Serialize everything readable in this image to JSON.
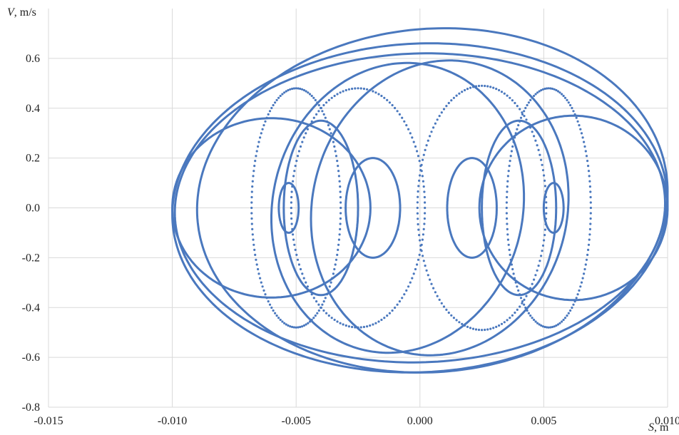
{
  "chart_data": {
    "type": "scatter",
    "title": "",
    "xlabel": {
      "var": "S",
      "unit": ", m"
    },
    "ylabel": {
      "var": "V",
      "unit": ", m/s"
    },
    "xlim": [
      -0.015,
      0.01
    ],
    "ylim": [
      -0.8,
      0.8
    ],
    "xticks": [
      "-0.015",
      "-0.010",
      "-0.005",
      "0.000",
      "0.005",
      "0.010"
    ],
    "yticks": [
      "-0.8",
      "-0.6",
      "-0.4",
      "-0.2",
      "0.0",
      "0.2",
      "0.4",
      "0.6"
    ],
    "grid": true,
    "legend": "none",
    "series": [
      {
        "color": "#4a78be",
        "style": "dense-dots",
        "loops": [
          {
            "cx": 0.0,
            "cy": 0.0,
            "rx": 0.0099,
            "ry": 0.62,
            "tilt": 0.1
          },
          {
            "cx": 0.0,
            "cy": 0.0,
            "rx": 0.01,
            "ry": 0.66,
            "tilt": 0.14
          },
          {
            "cx": 0.0005,
            "cy": 0.03,
            "rx": 0.0095,
            "ry": 0.69,
            "tilt": 0.18
          },
          {
            "cx": -0.006,
            "cy": 0.0,
            "rx": 0.004,
            "ry": 0.36,
            "tilt": 0.0
          },
          {
            "cx": 0.0062,
            "cy": 0.0,
            "rx": 0.0038,
            "ry": 0.37,
            "tilt": 0.0
          },
          {
            "cx": -0.0019,
            "cy": 0.0,
            "rx": 0.0011,
            "ry": 0.2,
            "tilt": 0.0
          },
          {
            "cx": 0.0021,
            "cy": 0.0,
            "rx": 0.001,
            "ry": 0.2,
            "tilt": 0.0
          },
          {
            "cx": -0.0053,
            "cy": 0.0,
            "rx": 0.0004,
            "ry": 0.1,
            "tilt": 0.0
          },
          {
            "cx": 0.0054,
            "cy": 0.0,
            "rx": 0.0004,
            "ry": 0.1,
            "tilt": 0.0
          },
          {
            "cx": -0.0009,
            "cy": 0.0,
            "rx": 0.0051,
            "ry": 0.58,
            "tilt": 0.25
          },
          {
            "cx": 0.0008,
            "cy": 0.0,
            "rx": 0.0052,
            "ry": 0.59,
            "tilt": 0.25
          },
          {
            "cx": -0.004,
            "cy": 0.0,
            "rx": 0.0015,
            "ry": 0.35,
            "tilt": 0.0
          },
          {
            "cx": 0.004,
            "cy": 0.0,
            "rx": 0.0015,
            "ry": 0.35,
            "tilt": 0.0
          }
        ],
        "dotted_rings": [
          {
            "cx": -0.005,
            "cy": 0.0,
            "rx": 0.0018,
            "ry": 0.48
          },
          {
            "cx": -0.0025,
            "cy": 0.0,
            "rx": 0.0027,
            "ry": 0.48
          },
          {
            "cx": 0.0025,
            "cy": 0.0,
            "rx": 0.0026,
            "ry": 0.49
          },
          {
            "cx": 0.0052,
            "cy": 0.0,
            "rx": 0.0017,
            "ry": 0.48
          }
        ]
      }
    ]
  }
}
